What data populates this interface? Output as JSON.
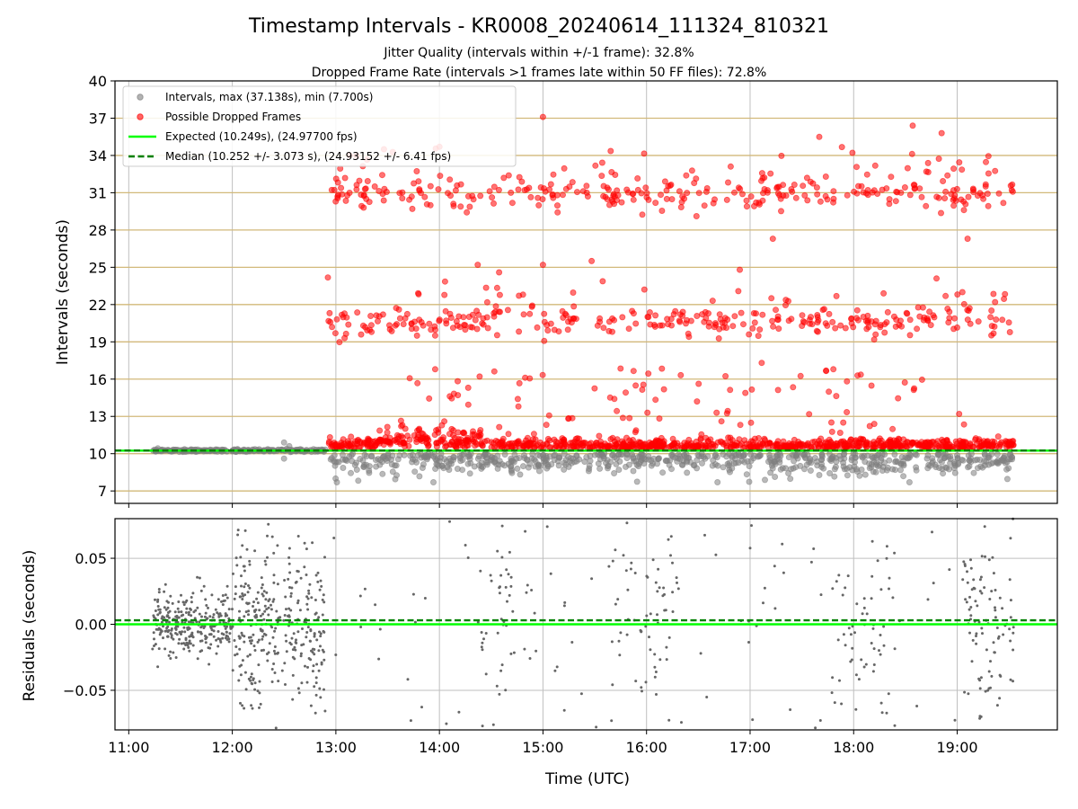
{
  "chart_data": {
    "title": "Timestamp Intervals - KR0008_20240614_111324_810321",
    "subtitle_lines": [
      "Jitter Quality (intervals within +/-1 frame): 32.8%",
      "Dropped Frame Rate (intervals >1 frames late within 50 FF files): 72.8%"
    ],
    "xlabel": "Time (UTC)",
    "x_ticks": [
      "11:00",
      "12:00",
      "13:00",
      "14:00",
      "15:00",
      "16:00",
      "17:00",
      "18:00",
      "19:00"
    ],
    "x_tick_hours": [
      11,
      12,
      13,
      14,
      15,
      16,
      17,
      18,
      19
    ],
    "x_range_hours": [
      10.867,
      19.967
    ],
    "panels": [
      {
        "type": "scatter",
        "ylabel": "Intervals (seconds)",
        "ylim": [
          6,
          40
        ],
        "yticks": [
          7,
          10,
          13,
          16,
          19,
          22,
          25,
          28,
          31,
          34,
          37,
          40
        ],
        "horizontal_reference_lines": [
          7,
          10,
          13,
          16,
          19,
          22,
          25,
          28,
          31,
          34,
          37
        ],
        "legend": {
          "placement": "upper-left",
          "entries": [
            {
              "label": "Intervals, max (37.138s), min (7.700s)",
              "style": "marker",
              "color": "#808080"
            },
            {
              "label": "Possible Dropped Frames",
              "style": "marker",
              "color": "#ff0000"
            },
            {
              "label": "Expected (10.249s), (24.97700 fps)",
              "style": "solid-line",
              "color": "#00ff00"
            },
            {
              "label": "Median (10.252 +/- 3.073 s), (24.93152 +/- 6.41 fps)",
              "style": "dashed-line",
              "color": "#008000"
            }
          ]
        },
        "series": [
          {
            "name": "Intervals, max (37.138s), min (7.700s)",
            "color": "#808080",
            "x_range_hours": [
              11.22,
              19.55
            ],
            "typical_range": [
              7.7,
              11.0
            ]
          },
          {
            "name": "Possible Dropped Frames",
            "color": "#ff0000",
            "x_range_hours": [
              12.9,
              19.55
            ],
            "clusters_y": [
              10.5,
              20.6,
              30.9
            ],
            "max": 37.138
          }
        ],
        "reference_lines": [
          {
            "name": "Expected",
            "y": 10.249,
            "color": "#00ff00",
            "style": "solid"
          },
          {
            "name": "Median",
            "y": 10.252,
            "color": "#008000",
            "style": "dashed"
          }
        ]
      },
      {
        "type": "scatter",
        "ylabel": "Residuals (seconds)",
        "ylim": [
          -0.08,
          0.08
        ],
        "yticks": [
          -0.05,
          0.0,
          0.05
        ],
        "ytick_labels": [
          "−0.05",
          "0.00",
          "0.05"
        ],
        "series": [
          {
            "name": "residuals",
            "color": "#808080",
            "dense_ranges_hours": [
              [
                11.22,
                12.9
              ],
              [
                14.35,
                14.75
              ],
              [
                15.65,
                16.3
              ],
              [
                17.85,
                18.4
              ],
              [
                19.05,
                19.55
              ]
            ]
          }
        ],
        "reference_lines": [
          {
            "name": "Expected",
            "y": 0.0,
            "color": "#00ff00",
            "style": "solid"
          },
          {
            "name": "Median",
            "y": 0.003,
            "color": "#008000",
            "style": "dashed"
          }
        ]
      }
    ]
  },
  "colors": {
    "intervals": "#808080",
    "dropped": "#ff0000",
    "expected": "#00ff00",
    "median": "#008000",
    "ref_lines": "#d2b97a",
    "grid": "#bfbfbf"
  }
}
